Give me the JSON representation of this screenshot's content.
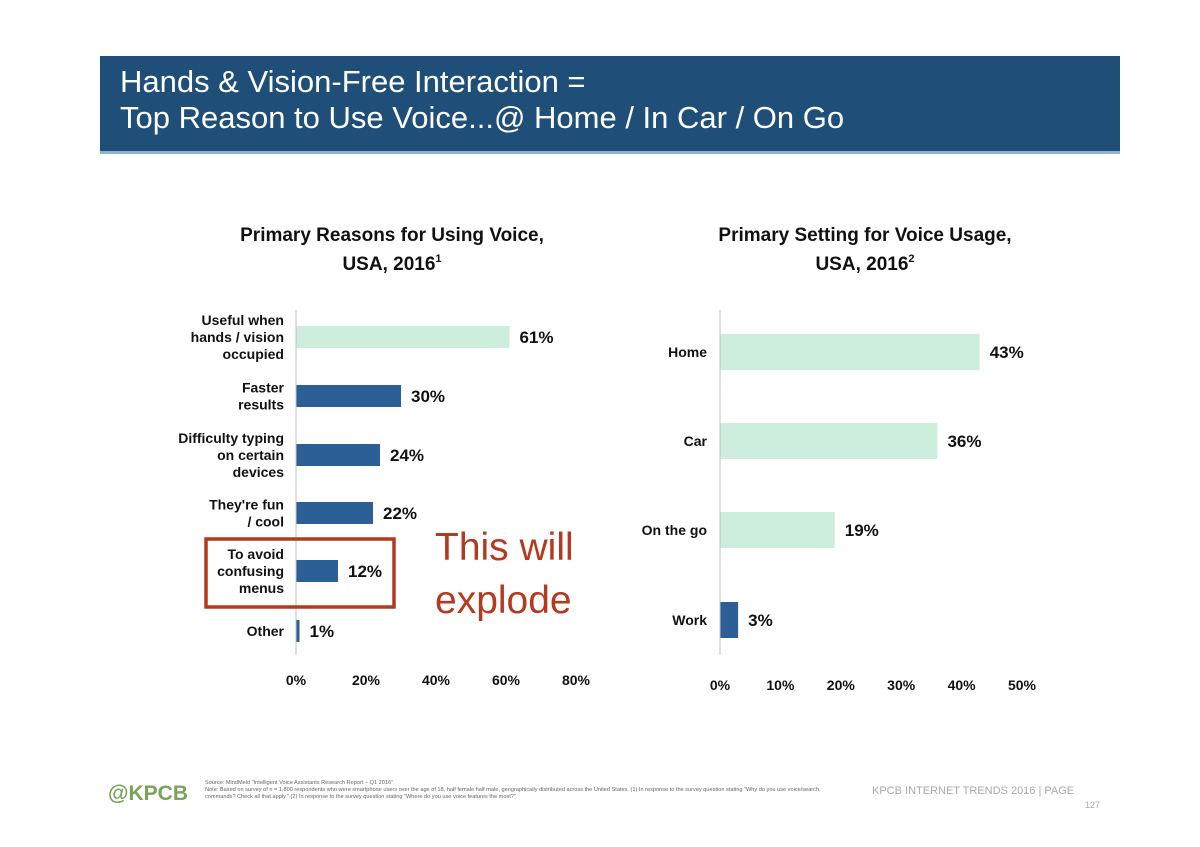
{
  "header": {
    "title_line1": "Hands & Vision-Free Interaction =",
    "title_line2": "Top Reason to Use Voice...@ Home / In Car / On Go"
  },
  "colors": {
    "header_bg": "#1f4e79",
    "bar_green": "#cdeedd",
    "bar_blue": "#2c5f96",
    "annotation_red": "#b43a1f"
  },
  "chart_data": [
    {
      "type": "bar",
      "orientation": "horizontal",
      "title_line1": "Primary Reasons for Using Voice,",
      "title_line2": "USA, 2016",
      "title_sup": "1",
      "categories": [
        [
          "Useful when",
          "hands / vision",
          "occupied"
        ],
        [
          "Faster",
          "results"
        ],
        [
          "Difficulty typing",
          "on certain",
          "devices"
        ],
        [
          "They're fun",
          "/ cool"
        ],
        [
          "To avoid",
          "confusing",
          "menus"
        ],
        [
          "Other"
        ]
      ],
      "values": [
        61,
        30,
        24,
        22,
        12,
        1
      ],
      "value_labels": [
        "61%",
        "30%",
        "24%",
        "22%",
        "12%",
        "1%"
      ],
      "bar_colors": [
        "green",
        "blue",
        "blue",
        "blue",
        "blue",
        "blue"
      ],
      "xlim": [
        0,
        80
      ],
      "xticks": [
        0,
        20,
        40,
        60,
        80
      ],
      "xtick_labels": [
        "0%",
        "20%",
        "40%",
        "60%",
        "80%"
      ],
      "highlight_index": 4,
      "annotation": [
        "This will",
        "explode"
      ]
    },
    {
      "type": "bar",
      "orientation": "horizontal",
      "title_line1": "Primary Setting for Voice Usage,",
      "title_line2": "USA, 2016",
      "title_sup": "2",
      "categories": [
        [
          "Home"
        ],
        [
          "Car"
        ],
        [
          "On the go"
        ],
        [
          "Work"
        ]
      ],
      "values": [
        43,
        36,
        19,
        3
      ],
      "value_labels": [
        "43%",
        "36%",
        "19%",
        "3%"
      ],
      "bar_colors": [
        "green",
        "green",
        "green",
        "blue"
      ],
      "xlim": [
        0,
        50
      ],
      "xticks": [
        0,
        10,
        20,
        30,
        40,
        50
      ],
      "xtick_labels": [
        "0%",
        "10%",
        "20%",
        "30%",
        "40%",
        "50%"
      ]
    }
  ],
  "footer": {
    "logo": "@KPCB",
    "source": "Source: MindMeld \"Intelligent Voice Assistants Research Report – Q1 2016\"",
    "note": "Note: Based on survey of n = 1,800 respondents who were smartphone users over the age of 18, half female half male, geographically distributed across the United States. (1) In response to the survey question stating \"Why do you use voice/search commands? Check all that apply.\" (2) In response to the survey question stating \"Where do you use voice features the most?\"",
    "right_text": "KPCB INTERNET TRENDS 2016  |  PAGE",
    "page_number": "127"
  }
}
